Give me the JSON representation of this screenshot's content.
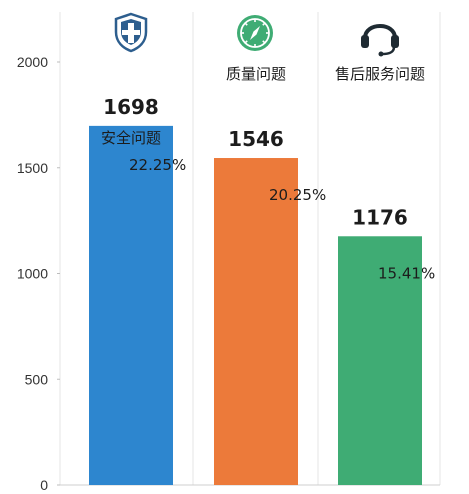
{
  "chart_data": {
    "type": "bar",
    "categories": [
      "安全问题",
      "质量问题",
      "售后服务问题"
    ],
    "values": [
      1698,
      1546,
      1176
    ],
    "value_labels": [
      "1698",
      "1546",
      "1176"
    ],
    "percent_labels": [
      "22.25%",
      "20.25%",
      "15.41%"
    ],
    "colors": [
      "#2d86cf",
      "#ec7a3a",
      "#3fac74"
    ],
    "icons": [
      "shield-icon",
      "compass-icon",
      "headset-icon"
    ],
    "ylim": [
      0,
      2200
    ],
    "yticks": [
      0,
      500,
      1000,
      1500,
      2000
    ],
    "ytick_labels": [
      "0",
      "500",
      "1000",
      "1500",
      "2000"
    ],
    "grid": "vertical lines between bars",
    "title": "",
    "xlabel": "",
    "ylabel": ""
  }
}
